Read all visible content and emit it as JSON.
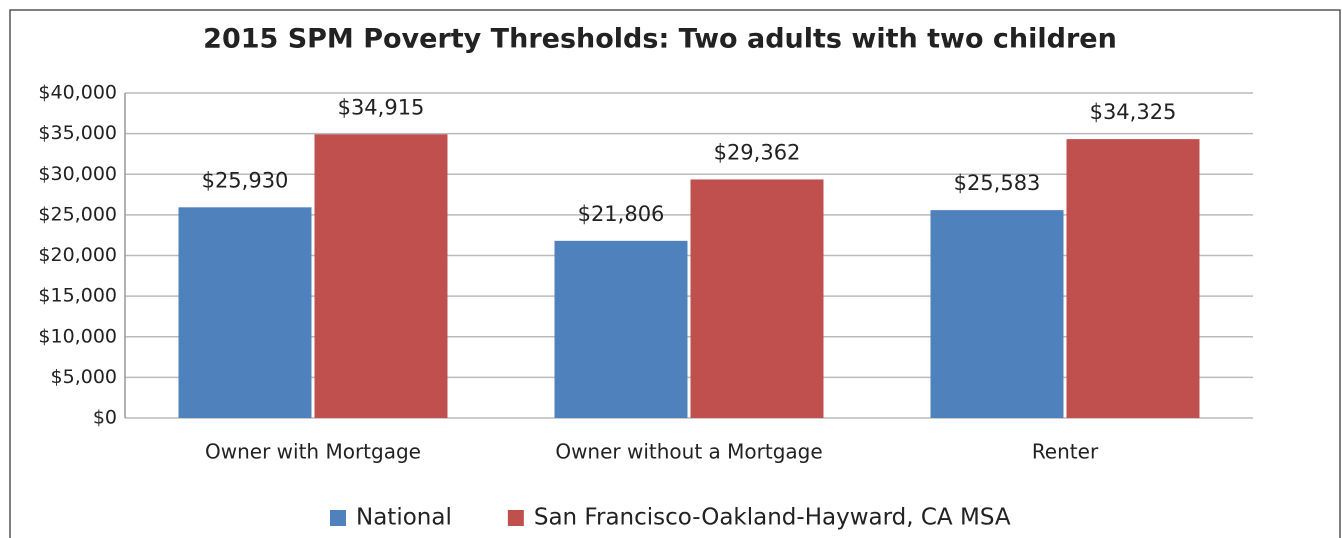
{
  "chart_data": {
    "type": "bar",
    "title": "2015  SPM Poverty Thresholds: Two adults with two children",
    "categories": [
      "Owner with Mortgage",
      "Owner without a Mortgage",
      "Renter"
    ],
    "series": [
      {
        "name": "National",
        "color": "#4f81bd",
        "values": [
          25930,
          21806,
          25583
        ],
        "value_labels": [
          "$25,930",
          "$21,806",
          "$25,583"
        ]
      },
      {
        "name": "San Francisco-Oakland-Hayward, CA MSA",
        "color": "#c0504d",
        "values": [
          34915,
          29362,
          34325
        ],
        "value_labels": [
          "$34,915",
          "$29,362",
          "$34,325"
        ]
      }
    ],
    "ylim": [
      0,
      40000
    ],
    "yticks": [
      {
        "value": 0,
        "label": "$0"
      },
      {
        "value": 5000,
        "label": "$5,000"
      },
      {
        "value": 10000,
        "label": "$10,000"
      },
      {
        "value": 15000,
        "label": "$15,000"
      },
      {
        "value": 20000,
        "label": "$20,000"
      },
      {
        "value": 25000,
        "label": "$25,000"
      },
      {
        "value": 30000,
        "label": "$30,000"
      },
      {
        "value": 35000,
        "label": "$35,000"
      },
      {
        "value": 40000,
        "label": "$40,000"
      }
    ],
    "grid": true,
    "legend": "bottom"
  }
}
